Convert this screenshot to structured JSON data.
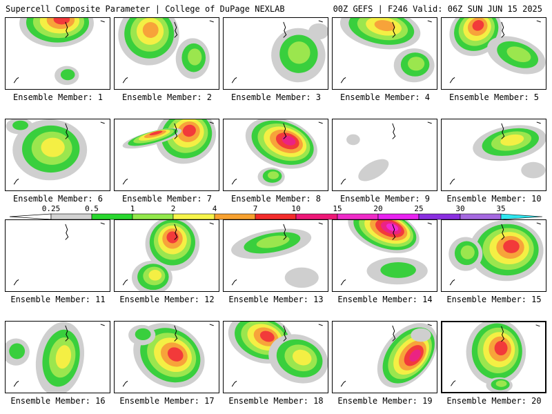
{
  "header": {
    "title": "Supercell Composite Parameter | College of DuPage NEXLAB",
    "run_info": "00Z GEFS | F246 Valid: 06Z SUN JUN 15 2025"
  },
  "colorbar": {
    "ticks": [
      "0.25",
      "0.5",
      "1",
      "2",
      "4",
      "7",
      "10",
      "15",
      "20",
      "25",
      "30",
      "35"
    ],
    "colors": [
      "#d2d2d2",
      "#29d82f",
      "#92e84b",
      "#f6f44a",
      "#f7a12f",
      "#f32c2c",
      "#ed1877",
      "#ee2bc8",
      "#e823f0",
      "#8a2ee0",
      "#a569e0",
      "#2ee6ef"
    ]
  },
  "shade_colors": {
    "l1": "#cfcfcf",
    "l2": "#39cf3d",
    "l3": "#9be64e",
    "l4": "#f4ef44",
    "l5": "#f7a33a",
    "l6": "#f23a3a",
    "l7": "#eb2383",
    "l8": "#f12ad0"
  },
  "members": [
    {
      "label": "Ensemble Member: 1",
      "selected": false
    },
    {
      "label": "Ensemble Member: 2",
      "selected": false
    },
    {
      "label": "Ensemble Member: 3",
      "selected": false
    },
    {
      "label": "Ensemble Member: 4",
      "selected": false
    },
    {
      "label": "Ensemble Member: 5",
      "selected": false
    },
    {
      "label": "Ensemble Member: 6",
      "selected": false
    },
    {
      "label": "Ensemble Member: 7",
      "selected": false
    },
    {
      "label": "Ensemble Member: 8",
      "selected": false
    },
    {
      "label": "Ensemble Member: 9",
      "selected": false
    },
    {
      "label": "Ensemble Member: 10",
      "selected": false
    },
    {
      "label": "Ensemble Member: 11",
      "selected": false
    },
    {
      "label": "Ensemble Member: 12",
      "selected": false
    },
    {
      "label": "Ensemble Member: 13",
      "selected": false
    },
    {
      "label": "Ensemble Member: 14",
      "selected": false
    },
    {
      "label": "Ensemble Member: 15",
      "selected": false
    },
    {
      "label": "Ensemble Member: 16",
      "selected": false
    },
    {
      "label": "Ensemble Member: 17",
      "selected": false
    },
    {
      "label": "Ensemble Member: 18",
      "selected": false
    },
    {
      "label": "Ensemble Member: 19",
      "selected": false
    },
    {
      "label": "Ensemble Member: 20",
      "selected": true
    }
  ]
}
